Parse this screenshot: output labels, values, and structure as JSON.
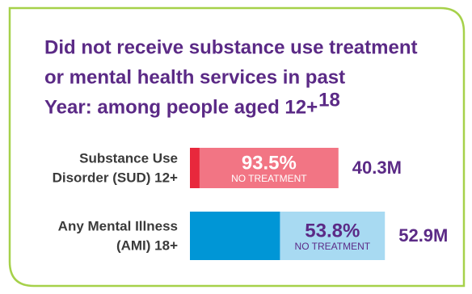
{
  "chart_data": {
    "type": "split-bar",
    "title_lines": [
      "Did not receive substance use treatment",
      "or mental health services in past",
      "Year: among people aged 12+"
    ],
    "title_note": "18",
    "categories": [
      [
        "Substance Use",
        "Disorder (SUD) 12+"
      ],
      [
        "Any Mental Illness",
        "(AMI) 18+"
      ]
    ],
    "values": [
      40.3,
      52.9
    ],
    "value_labels": [
      "40.3M",
      "52.9M"
    ],
    "no_treatment": {
      "label": "NO TREATMENT",
      "values": [
        93.5,
        53.8
      ],
      "value_labels": [
        "93.5%",
        "53.8%"
      ]
    },
    "colors": [
      [
        "#e8283c",
        "#f27584"
      ],
      [
        "#0096d6",
        "#a8daf2"
      ]
    ],
    "text_colors": [
      "#ffffff",
      "#5b2a86"
    ]
  }
}
